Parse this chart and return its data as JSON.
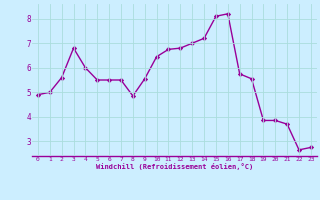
{
  "x": [
    0,
    1,
    2,
    3,
    4,
    5,
    6,
    7,
    8,
    9,
    10,
    11,
    12,
    13,
    14,
    15,
    16,
    17,
    18,
    19,
    20,
    21,
    22,
    23
  ],
  "y": [
    4.9,
    5.0,
    5.6,
    6.8,
    6.0,
    5.5,
    5.5,
    5.5,
    4.85,
    5.55,
    6.45,
    6.75,
    6.8,
    7.0,
    7.2,
    8.1,
    8.2,
    5.75,
    5.55,
    3.85,
    3.85,
    3.7,
    2.65,
    2.75
  ],
  "line_color": "#990099",
  "marker": "D",
  "marker_size": 2.2,
  "linewidth": 1.0,
  "bg_color": "#cceeff",
  "grid_color": "#aadddd",
  "xlabel": "Windchill (Refroidissement éolien,°C)",
  "xlabel_color": "#990099",
  "tick_color": "#990099",
  "label_color": "#990099",
  "xlim": [
    -0.5,
    23.5
  ],
  "ylim": [
    2.4,
    8.6
  ],
  "yticks": [
    3,
    4,
    5,
    6,
    7,
    8
  ],
  "xticks": [
    0,
    1,
    2,
    3,
    4,
    5,
    6,
    7,
    8,
    9,
    10,
    11,
    12,
    13,
    14,
    15,
    16,
    17,
    18,
    19,
    20,
    21,
    22,
    23
  ]
}
